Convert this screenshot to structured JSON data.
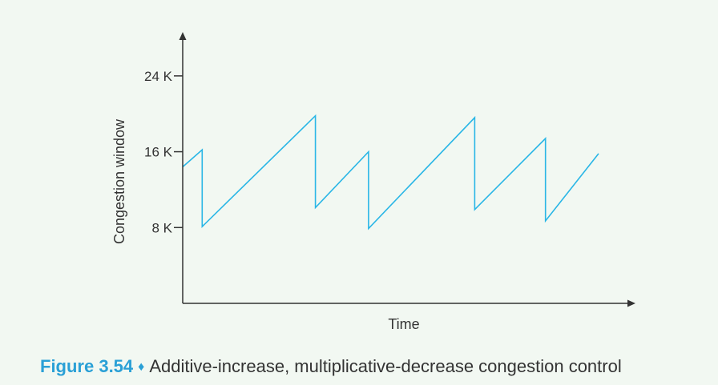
{
  "figure": {
    "label": "Figure 3.54",
    "separator": "♦",
    "title": "Additive-increase, multiplicative-decrease congestion control"
  },
  "colors": {
    "background": "#f2f8f2",
    "series": "#29b6e6",
    "axis": "#333333",
    "figure_label": "#2aa0d6"
  },
  "chart_data": {
    "type": "line",
    "xlabel": "Time",
    "ylabel": "Congestion window",
    "ylim": [
      0,
      27.5
    ],
    "xlim": [
      0,
      24
    ],
    "y_ticks": [
      {
        "value": 8,
        "label": "8 K"
      },
      {
        "value": 16,
        "label": "16 K"
      },
      {
        "value": 24,
        "label": "24 K"
      }
    ],
    "x_ticks": [],
    "grid": false,
    "legend": "none",
    "series": [
      {
        "points": [
          [
            0,
            14.4
          ],
          [
            1.1,
            16.2
          ],
          [
            1.1,
            8.1
          ],
          [
            7.5,
            19.8
          ],
          [
            7.5,
            10.1
          ],
          [
            10.5,
            16.0
          ],
          [
            10.5,
            7.9
          ],
          [
            16.5,
            19.6
          ],
          [
            16.5,
            9.9
          ],
          [
            20.5,
            17.4
          ],
          [
            20.5,
            8.7
          ],
          [
            23.5,
            15.8
          ]
        ]
      }
    ]
  }
}
